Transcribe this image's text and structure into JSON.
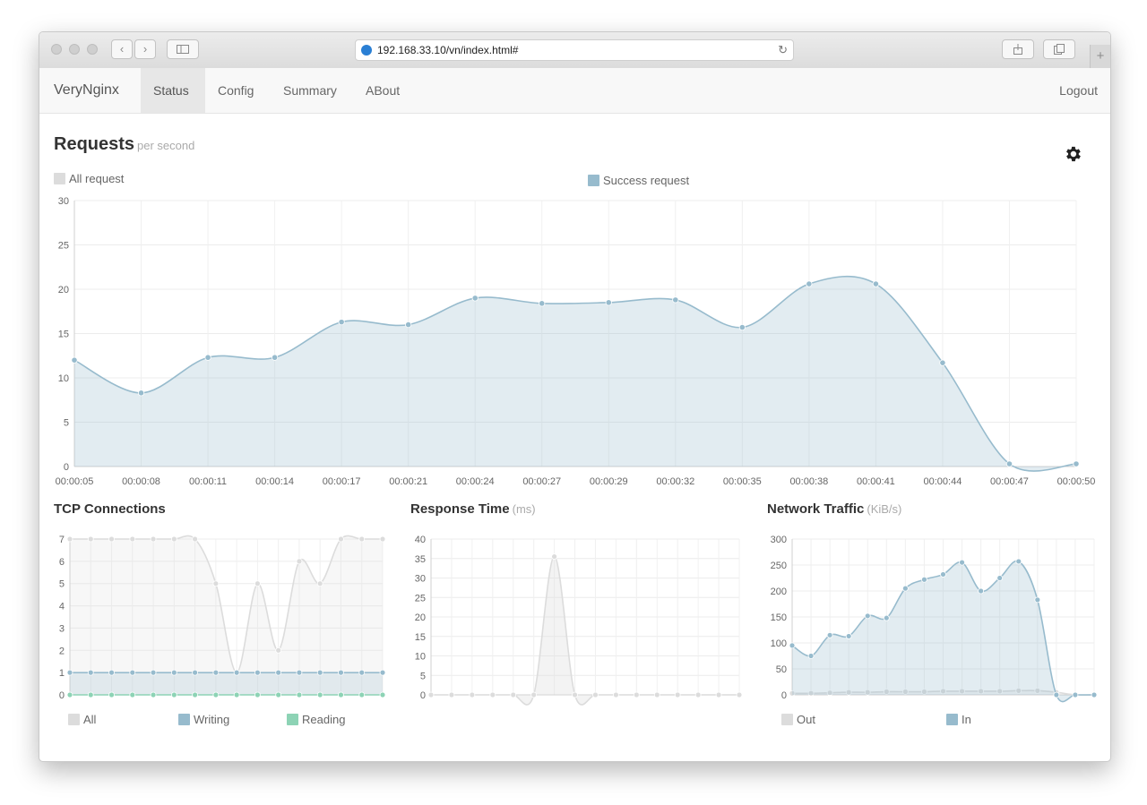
{
  "browser": {
    "url": "192.168.33.10/vn/index.html#",
    "newtab_label": "+"
  },
  "navbar": {
    "brand": "VeryNginx",
    "items": [
      {
        "label": "Status",
        "active": true
      },
      {
        "label": "Config",
        "active": false
      },
      {
        "label": "Summary",
        "active": false
      },
      {
        "label": "ABout",
        "active": false
      }
    ],
    "logout": "Logout"
  },
  "requests": {
    "title": "Requests",
    "subtitle": "per second",
    "legend": [
      {
        "label": "All request",
        "color": "#dcdcdc"
      },
      {
        "label": "Success request",
        "color": "#97bbcd"
      }
    ]
  },
  "tcp": {
    "title": "TCP Connections",
    "legend": [
      {
        "label": "All",
        "color": "#dcdcdc"
      },
      {
        "label": "Writing",
        "color": "#97bbcd"
      },
      {
        "label": "Reading",
        "color": "#8dd3b5"
      }
    ]
  },
  "response": {
    "title": "Response Time",
    "subtitle": "(ms)"
  },
  "network": {
    "title": "Network Traffic",
    "subtitle": "(KiB/s)",
    "legend": [
      {
        "label": "Out",
        "color": "#dcdcdc"
      },
      {
        "label": "In",
        "color": "#97bbcd"
      }
    ]
  },
  "chart_data": [
    {
      "id": "requests",
      "type": "area",
      "title": "Requests",
      "x": [
        "00:00:05",
        "00:00:08",
        "00:00:11",
        "00:00:14",
        "00:00:17",
        "00:00:21",
        "00:00:24",
        "00:00:27",
        "00:00:29",
        "00:00:32",
        "00:00:35",
        "00:00:38",
        "00:00:41",
        "00:00:44",
        "00:00:47",
        "00:00:50"
      ],
      "ylim": [
        0,
        30
      ],
      "yticks": [
        0,
        5,
        10,
        15,
        20,
        25,
        30
      ],
      "series": [
        {
          "name": "Success request",
          "color": "#97bbcd",
          "values": [
            12,
            8.3,
            12.3,
            12.3,
            16.3,
            16,
            19,
            18.4,
            18.5,
            18.8,
            15.7,
            20.6,
            20.6,
            11.7,
            0.3,
            0.3
          ]
        }
      ],
      "grid": true
    },
    {
      "id": "tcp",
      "type": "area",
      "title": "TCP Connections",
      "ylim": [
        0,
        7
      ],
      "yticks": [
        0,
        1,
        2,
        3,
        4,
        5,
        6,
        7
      ],
      "series": [
        {
          "name": "All",
          "color": "#dcdcdc",
          "values": [
            7,
            7,
            7,
            7,
            7,
            7,
            7,
            5,
            1,
            5,
            2,
            6,
            5,
            7,
            7,
            7
          ]
        },
        {
          "name": "Writing",
          "color": "#97bbcd",
          "values": [
            1,
            1,
            1,
            1,
            1,
            1,
            1,
            1,
            1,
            1,
            1,
            1,
            1,
            1,
            1,
            1
          ]
        },
        {
          "name": "Reading",
          "color": "#8dd3b5",
          "values": [
            0,
            0,
            0,
            0,
            0,
            0,
            0,
            0,
            0,
            0,
            0,
            0,
            0,
            0,
            0,
            0
          ]
        }
      ],
      "grid": true
    },
    {
      "id": "response",
      "type": "area",
      "title": "Response Time",
      "ylim": [
        0,
        40
      ],
      "yticks": [
        0,
        5,
        10,
        15,
        20,
        25,
        30,
        35,
        40
      ],
      "series": [
        {
          "color": "#dcdcdc",
          "values": [
            0,
            0,
            0,
            0,
            0,
            0,
            35.5,
            0,
            0,
            0,
            0,
            0,
            0,
            0,
            0,
            0
          ]
        }
      ],
      "grid": true
    },
    {
      "id": "network",
      "type": "area",
      "title": "Network Traffic",
      "ylim": [
        0,
        300
      ],
      "yticks": [
        0,
        50,
        100,
        150,
        200,
        250,
        300
      ],
      "series": [
        {
          "name": "Out",
          "color": "#dcdcdc",
          "values": [
            3,
            3,
            4,
            5,
            5,
            6,
            6,
            6,
            7,
            7,
            7,
            7,
            8,
            8,
            5,
            0,
            0
          ]
        },
        {
          "name": "In",
          "color": "#97bbcd",
          "values": [
            95,
            75,
            115,
            113,
            152,
            148,
            205,
            222,
            232,
            255,
            200,
            225,
            257,
            183,
            0,
            0,
            0
          ]
        }
      ],
      "grid": true
    }
  ]
}
